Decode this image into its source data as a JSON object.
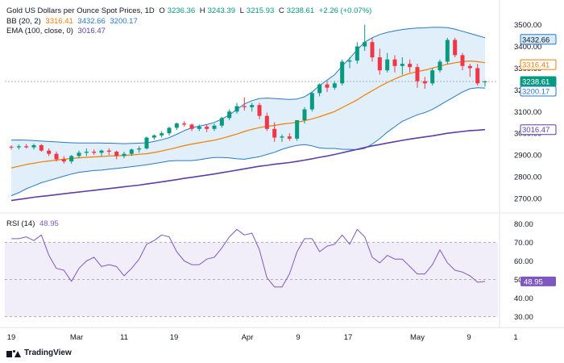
{
  "legend": {
    "title": "Gold US Dollars per Ounce Spot Prices, 1D",
    "open_label": "O",
    "open": "3236.36",
    "high_label": "H",
    "high": "3243.39",
    "low_label": "L",
    "low": "3215.93",
    "close_label": "C",
    "close": "3238.61",
    "change": "+2.26 (+0.07%)",
    "bb_label": "BB (20, 2)",
    "bb_basis": "3316.41",
    "bb_upper": "3432.66",
    "bb_lower": "3200.17",
    "ema_label": "EMA (100, close, 0)",
    "ema_value": "3016.47",
    "rsi_label": "RSI (14)",
    "rsi_value": "48.95"
  },
  "brand": {
    "name": "TradingView",
    "icon": "tradingview-logo-icon"
  },
  "colors": {
    "up": "#089981",
    "down": "#f23645",
    "bb_basis": "#f57c00",
    "bb_band": "#2979c6",
    "bb_fill": "#d6eaf8",
    "ema": "#5b3fa8",
    "rsi_line": "#7e57c2",
    "rsi_fill": "#ede7f6",
    "price_tag_close": "#089981"
  },
  "chart_data": [
    {
      "type": "candlestick",
      "x_ticks": [
        "19",
        "Mar",
        "11",
        "19",
        "Apr",
        "9",
        "17",
        "May",
        "9",
        "1"
      ],
      "ylim": [
        2640,
        3510
      ],
      "y_ticks": [
        2700,
        2800,
        2900,
        3000,
        3100,
        3200,
        3300,
        3400,
        3500
      ],
      "price_tags": [
        {
          "name": "bb-upper",
          "value": 3432.66,
          "label": "3432.66"
        },
        {
          "name": "bb-basis",
          "value": 3316.41,
          "label": "3316.41"
        },
        {
          "name": "close",
          "value": 3238.61,
          "label": "3238.61"
        },
        {
          "name": "bb-lower",
          "value": 3200.17,
          "label": "3200.17"
        },
        {
          "name": "ema",
          "value": 3016.47,
          "label": "3016.47"
        }
      ],
      "ohlc": [
        [
          2938,
          2945,
          2925,
          2935
        ],
        [
          2935,
          2948,
          2925,
          2940
        ],
        [
          2940,
          2950,
          2930,
          2935
        ],
        [
          2935,
          2952,
          2925,
          2945
        ],
        [
          2945,
          2950,
          2915,
          2920
        ],
        [
          2920,
          2930,
          2895,
          2905
        ],
        [
          2905,
          2915,
          2870,
          2880
        ],
        [
          2880,
          2895,
          2860,
          2870
        ],
        [
          2870,
          2900,
          2860,
          2895
        ],
        [
          2895,
          2920,
          2885,
          2910
        ],
        [
          2910,
          2930,
          2895,
          2915
        ],
        [
          2915,
          2925,
          2900,
          2910
        ],
        [
          2910,
          2925,
          2895,
          2920
        ],
        [
          2920,
          2930,
          2900,
          2915
        ],
        [
          2915,
          2920,
          2880,
          2895
        ],
        [
          2895,
          2915,
          2885,
          2905
        ],
        [
          2905,
          2930,
          2895,
          2925
        ],
        [
          2925,
          2940,
          2910,
          2930
        ],
        [
          2930,
          2985,
          2925,
          2980
        ],
        [
          2980,
          2995,
          2970,
          2990
        ],
        [
          2990,
          3010,
          2980,
          3000
        ],
        [
          3000,
          3030,
          2990,
          3025
        ],
        [
          3025,
          3050,
          3015,
          3045
        ],
        [
          3045,
          3055,
          3030,
          3040
        ],
        [
          3040,
          3045,
          3010,
          3020
        ],
        [
          3020,
          3040,
          3010,
          3030
        ],
        [
          3030,
          3040,
          3005,
          3020
        ],
        [
          3020,
          3045,
          3010,
          3035
        ],
        [
          3035,
          3075,
          3025,
          3070
        ],
        [
          3070,
          3110,
          3060,
          3100
        ],
        [
          3100,
          3140,
          3090,
          3125
        ],
        [
          3125,
          3165,
          3105,
          3120
        ],
        [
          3120,
          3140,
          3100,
          3130
        ],
        [
          3130,
          3140,
          3065,
          3080
        ],
        [
          3080,
          3095,
          3010,
          3020
        ],
        [
          3020,
          3050,
          2960,
          2980
        ],
        [
          2980,
          2995,
          2960,
          2985
        ],
        [
          2985,
          3000,
          2965,
          2975
        ],
        [
          2975,
          3060,
          2965,
          3060
        ],
        [
          3060,
          3120,
          3045,
          3110
        ],
        [
          3110,
          3190,
          3100,
          3185
        ],
        [
          3185,
          3230,
          3170,
          3225
        ],
        [
          3225,
          3240,
          3190,
          3210
        ],
        [
          3210,
          3240,
          3200,
          3230
        ],
        [
          3230,
          3340,
          3220,
          3330
        ],
        [
          3330,
          3350,
          3300,
          3335
        ],
        [
          3335,
          3420,
          3320,
          3400
        ],
        [
          3400,
          3500,
          3380,
          3420
        ],
        [
          3420,
          3440,
          3330,
          3350
        ],
        [
          3350,
          3390,
          3270,
          3290
        ],
        [
          3290,
          3370,
          3280,
          3340
        ],
        [
          3340,
          3360,
          3280,
          3310
        ],
        [
          3310,
          3350,
          3270,
          3320
        ],
        [
          3320,
          3340,
          3280,
          3305
        ],
        [
          3305,
          3320,
          3210,
          3240
        ],
        [
          3240,
          3260,
          3205,
          3230
        ],
        [
          3230,
          3300,
          3220,
          3290
        ],
        [
          3290,
          3340,
          3280,
          3330
        ],
        [
          3330,
          3440,
          3320,
          3430
        ],
        [
          3430,
          3440,
          3350,
          3360
        ],
        [
          3360,
          3370,
          3290,
          3310
        ],
        [
          3310,
          3320,
          3260,
          3300
        ],
        [
          3300,
          3320,
          3220,
          3230
        ],
        [
          3236.36,
          3243.39,
          3215.93,
          3238.61
        ]
      ],
      "bb_upper": [
        2968,
        2969,
        2968,
        2966,
        2964,
        2962,
        2960,
        2958,
        2956,
        2955,
        2955,
        2955,
        2955,
        2954,
        2953,
        2952,
        2953,
        2954,
        2956,
        2962,
        2970,
        2980,
        2995,
        3012,
        3025,
        3033,
        3040,
        3050,
        3065,
        3085,
        3110,
        3135,
        3150,
        3160,
        3162,
        3160,
        3158,
        3156,
        3158,
        3168,
        3190,
        3220,
        3245,
        3270,
        3310,
        3345,
        3385,
        3420,
        3440,
        3455,
        3465,
        3472,
        3478,
        3482,
        3485,
        3486,
        3488,
        3488,
        3487,
        3480,
        3470,
        3460,
        3450,
        3440
      ],
      "bb_basis": [
        2840,
        2848,
        2856,
        2862,
        2868,
        2872,
        2876,
        2880,
        2884,
        2887,
        2889,
        2891,
        2893,
        2895,
        2896,
        2898,
        2900,
        2903,
        2906,
        2911,
        2918,
        2926,
        2934,
        2943,
        2950,
        2956,
        2962,
        2968,
        2976,
        2986,
        2996,
        3008,
        3018,
        3026,
        3032,
        3036,
        3042,
        3046,
        3051,
        3058,
        3066,
        3076,
        3088,
        3100,
        3118,
        3136,
        3154,
        3176,
        3196,
        3216,
        3234,
        3250,
        3265,
        3276,
        3284,
        3291,
        3300,
        3310,
        3318,
        3325,
        3330,
        3333,
        3330,
        3325
      ],
      "bb_lower": [
        2712,
        2726,
        2744,
        2758,
        2772,
        2782,
        2792,
        2802,
        2812,
        2820,
        2824,
        2828,
        2830,
        2834,
        2838,
        2842,
        2846,
        2850,
        2855,
        2860,
        2866,
        2872,
        2874,
        2874,
        2874,
        2878,
        2884,
        2888,
        2888,
        2886,
        2882,
        2880,
        2886,
        2892,
        2902,
        2912,
        2926,
        2936,
        2944,
        2948,
        2942,
        2932,
        2930,
        2930,
        2926,
        2926,
        2924,
        2930,
        2950,
        2975,
        3005,
        3030,
        3055,
        3070,
        3085,
        3095,
        3110,
        3130,
        3150,
        3170,
        3190,
        3205,
        3210,
        3208
      ],
      "ema": [
        2690,
        2695,
        2700,
        2705,
        2709,
        2713,
        2717,
        2721,
        2725,
        2729,
        2733,
        2737,
        2741,
        2745,
        2749,
        2753,
        2757,
        2761,
        2766,
        2771,
        2776,
        2781,
        2786,
        2792,
        2797,
        2802,
        2807,
        2812,
        2818,
        2824,
        2830,
        2836,
        2842,
        2848,
        2852,
        2857,
        2861,
        2865,
        2870,
        2876,
        2882,
        2889,
        2895,
        2902,
        2910,
        2918,
        2926,
        2934,
        2942,
        2948,
        2955,
        2961,
        2967,
        2973,
        2978,
        2983,
        2988,
        2994,
        3000,
        3004,
        3008,
        3012,
        3014,
        3016.47
      ]
    },
    {
      "type": "line",
      "title": "RSI (14)",
      "ylim": [
        25,
        85
      ],
      "y_ticks": [
        30,
        40,
        50,
        60,
        70,
        80
      ],
      "band": [
        30,
        70
      ],
      "value_tag": {
        "value": 48.95,
        "label": "48.95"
      },
      "values": [
        72,
        72,
        73,
        71,
        74,
        63,
        56,
        55,
        49,
        56,
        60,
        62,
        57,
        58,
        57,
        52,
        56,
        61,
        69,
        71,
        74,
        73,
        65,
        60,
        58,
        58,
        61,
        62,
        67,
        73,
        77,
        74,
        75,
        66,
        51,
        46,
        46,
        53,
        65,
        72,
        72,
        65,
        68,
        69,
        74,
        69,
        77,
        73,
        62,
        59,
        63,
        61,
        61,
        57,
        53,
        53,
        58,
        66,
        59,
        55,
        54,
        52,
        48.5,
        48.95
      ]
    }
  ]
}
